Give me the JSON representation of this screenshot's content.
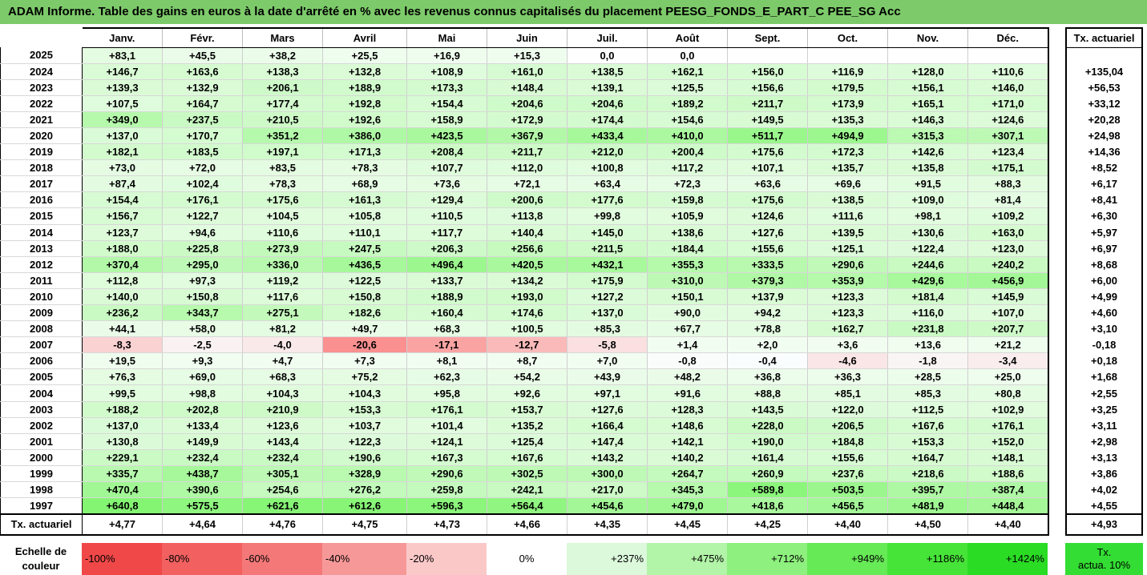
{
  "title": "ADAM Informe. Table des gains en euros à la date d'arrêté en % avec les revenus connus capitalisés du placement PEESG_FONDS_E_PART_C PEE_SG Acc",
  "months": [
    "Janv.",
    "Févr.",
    "Mars",
    "Avril",
    "Mai",
    "Juin",
    "Juil.",
    "Août",
    "Sept.",
    "Oct.",
    "Nov.",
    "Déc."
  ],
  "side_header": "Tx. actuariel",
  "rows": [
    {
      "year": "2025",
      "values": [
        "+83,1",
        "+45,5",
        "+38,2",
        "+25,5",
        "+16,9",
        "+15,3",
        "0,0",
        "0,0",
        "",
        "",
        "",
        ""
      ],
      "tx": ""
    },
    {
      "year": "2024",
      "values": [
        "+146,7",
        "+163,6",
        "+138,3",
        "+132,8",
        "+108,9",
        "+161,0",
        "+138,5",
        "+162,1",
        "+156,0",
        "+116,9",
        "+128,0",
        "+110,6"
      ],
      "tx": "+135,04"
    },
    {
      "year": "2023",
      "values": [
        "+139,3",
        "+132,9",
        "+206,1",
        "+188,9",
        "+173,3",
        "+148,4",
        "+139,1",
        "+125,5",
        "+156,6",
        "+179,5",
        "+156,1",
        "+146,0"
      ],
      "tx": "+56,53"
    },
    {
      "year": "2022",
      "values": [
        "+107,5",
        "+164,7",
        "+177,4",
        "+192,8",
        "+154,4",
        "+204,6",
        "+204,6",
        "+189,2",
        "+211,7",
        "+173,9",
        "+165,1",
        "+171,0"
      ],
      "tx": "+33,12"
    },
    {
      "year": "2021",
      "values": [
        "+349,0",
        "+237,5",
        "+210,5",
        "+192,6",
        "+158,9",
        "+172,9",
        "+174,4",
        "+154,6",
        "+149,5",
        "+135,3",
        "+146,3",
        "+124,6"
      ],
      "tx": "+20,28"
    },
    {
      "year": "2020",
      "values": [
        "+137,0",
        "+170,7",
        "+351,2",
        "+386,0",
        "+423,5",
        "+367,9",
        "+433,4",
        "+410,0",
        "+511,7",
        "+494,9",
        "+315,3",
        "+307,1"
      ],
      "tx": "+24,98"
    },
    {
      "year": "2019",
      "values": [
        "+182,1",
        "+183,5",
        "+197,1",
        "+171,3",
        "+208,4",
        "+211,7",
        "+212,0",
        "+200,4",
        "+175,6",
        "+172,3",
        "+142,6",
        "+123,4"
      ],
      "tx": "+14,36"
    },
    {
      "year": "2018",
      "values": [
        "+73,0",
        "+72,0",
        "+83,5",
        "+78,3",
        "+107,7",
        "+112,0",
        "+100,8",
        "+117,2",
        "+107,1",
        "+135,7",
        "+135,8",
        "+175,1"
      ],
      "tx": "+8,52"
    },
    {
      "year": "2017",
      "values": [
        "+87,4",
        "+102,4",
        "+78,3",
        "+68,9",
        "+73,6",
        "+72,1",
        "+63,4",
        "+72,3",
        "+63,6",
        "+69,6",
        "+91,5",
        "+88,3"
      ],
      "tx": "+6,17"
    },
    {
      "year": "2016",
      "values": [
        "+154,4",
        "+176,1",
        "+175,6",
        "+161,3",
        "+129,4",
        "+200,6",
        "+177,6",
        "+159,8",
        "+175,6",
        "+138,5",
        "+109,0",
        "+81,4"
      ],
      "tx": "+8,41"
    },
    {
      "year": "2015",
      "values": [
        "+156,7",
        "+122,7",
        "+104,5",
        "+105,8",
        "+110,5",
        "+113,8",
        "+99,8",
        "+105,9",
        "+124,6",
        "+111,6",
        "+98,1",
        "+109,2"
      ],
      "tx": "+6,30"
    },
    {
      "year": "2014",
      "values": [
        "+123,7",
        "+94,6",
        "+110,6",
        "+110,1",
        "+117,7",
        "+140,4",
        "+145,0",
        "+138,6",
        "+127,6",
        "+139,5",
        "+130,6",
        "+163,0"
      ],
      "tx": "+5,97"
    },
    {
      "year": "2013",
      "values": [
        "+188,0",
        "+225,8",
        "+273,9",
        "+247,5",
        "+206,3",
        "+256,6",
        "+211,5",
        "+184,4",
        "+155,6",
        "+125,1",
        "+122,4",
        "+123,0"
      ],
      "tx": "+6,97"
    },
    {
      "year": "2012",
      "values": [
        "+370,4",
        "+295,0",
        "+336,0",
        "+436,5",
        "+496,4",
        "+420,5",
        "+432,1",
        "+355,3",
        "+333,5",
        "+290,6",
        "+244,6",
        "+240,2"
      ],
      "tx": "+8,68"
    },
    {
      "year": "2011",
      "values": [
        "+112,8",
        "+97,3",
        "+119,2",
        "+122,5",
        "+133,7",
        "+134,2",
        "+175,9",
        "+310,0",
        "+379,3",
        "+353,9",
        "+429,6",
        "+456,9"
      ],
      "tx": "+6,00"
    },
    {
      "year": "2010",
      "values": [
        "+140,0",
        "+150,8",
        "+117,6",
        "+150,8",
        "+188,9",
        "+193,0",
        "+127,2",
        "+150,1",
        "+137,9",
        "+123,3",
        "+181,4",
        "+145,9"
      ],
      "tx": "+4,99"
    },
    {
      "year": "2009",
      "values": [
        "+236,2",
        "+343,7",
        "+275,1",
        "+182,6",
        "+160,4",
        "+174,6",
        "+137,0",
        "+90,0",
        "+94,2",
        "+123,3",
        "+116,0",
        "+107,0"
      ],
      "tx": "+4,60"
    },
    {
      "year": "2008",
      "values": [
        "+44,1",
        "+58,0",
        "+81,2",
        "+49,7",
        "+68,3",
        "+100,5",
        "+85,3",
        "+67,7",
        "+78,8",
        "+162,7",
        "+231,8",
        "+207,7"
      ],
      "tx": "+3,10"
    },
    {
      "year": "2007",
      "values": [
        "-8,3",
        "-2,5",
        "-4,0",
        "-20,6",
        "-17,1",
        "-12,7",
        "-5,8",
        "+1,4",
        "+2,0",
        "+3,6",
        "+13,6",
        "+21,2"
      ],
      "tx": "-0,18"
    },
    {
      "year": "2006",
      "values": [
        "+19,5",
        "+9,3",
        "+4,7",
        "+7,3",
        "+8,1",
        "+8,7",
        "+7,0",
        "-0,8",
        "-0,4",
        "-4,6",
        "-1,8",
        "-3,4"
      ],
      "tx": "+0,18"
    },
    {
      "year": "2005",
      "values": [
        "+76,3",
        "+69,0",
        "+68,3",
        "+75,2",
        "+62,3",
        "+54,2",
        "+43,9",
        "+48,2",
        "+36,8",
        "+36,3",
        "+28,5",
        "+25,0"
      ],
      "tx": "+1,68"
    },
    {
      "year": "2004",
      "values": [
        "+99,5",
        "+98,8",
        "+104,3",
        "+104,3",
        "+95,8",
        "+92,6",
        "+97,1",
        "+91,6",
        "+88,8",
        "+85,1",
        "+85,3",
        "+80,8"
      ],
      "tx": "+2,55"
    },
    {
      "year": "2003",
      "values": [
        "+188,2",
        "+202,8",
        "+210,9",
        "+153,3",
        "+176,1",
        "+153,7",
        "+127,6",
        "+128,3",
        "+143,5",
        "+122,0",
        "+112,5",
        "+102,9"
      ],
      "tx": "+3,25"
    },
    {
      "year": "2002",
      "values": [
        "+137,0",
        "+133,4",
        "+123,6",
        "+103,7",
        "+101,4",
        "+135,2",
        "+166,4",
        "+148,6",
        "+228,0",
        "+206,5",
        "+167,6",
        "+176,1"
      ],
      "tx": "+3,11"
    },
    {
      "year": "2001",
      "values": [
        "+130,8",
        "+149,9",
        "+143,4",
        "+122,3",
        "+124,1",
        "+125,4",
        "+147,4",
        "+142,1",
        "+190,0",
        "+184,8",
        "+153,3",
        "+152,0"
      ],
      "tx": "+2,98"
    },
    {
      "year": "2000",
      "values": [
        "+229,1",
        "+232,4",
        "+232,4",
        "+190,6",
        "+167,3",
        "+167,6",
        "+143,2",
        "+140,2",
        "+161,4",
        "+155,6",
        "+164,7",
        "+148,1"
      ],
      "tx": "+3,13"
    },
    {
      "year": "1999",
      "values": [
        "+335,7",
        "+438,7",
        "+305,1",
        "+328,9",
        "+290,6",
        "+302,5",
        "+300,0",
        "+264,7",
        "+260,9",
        "+237,6",
        "+218,6",
        "+188,6"
      ],
      "tx": "+3,86"
    },
    {
      "year": "1998",
      "values": [
        "+470,4",
        "+390,6",
        "+254,6",
        "+276,2",
        "+259,8",
        "+242,1",
        "+217,0",
        "+345,3",
        "+589,8",
        "+503,5",
        "+395,7",
        "+387,4"
      ],
      "tx": "+4,02"
    },
    {
      "year": "1997",
      "values": [
        "+640,8",
        "+575,5",
        "+621,6",
        "+612,6",
        "+596,3",
        "+564,4",
        "+454,6",
        "+479,0",
        "+418,6",
        "+456,5",
        "+481,9",
        "+448,4"
      ],
      "tx": "+4,55"
    }
  ],
  "footer": {
    "label": "Tx. actuariel",
    "values": [
      "+4,77",
      "+4,64",
      "+4,76",
      "+4,75",
      "+4,73",
      "+4,66",
      "+4,35",
      "+4,45",
      "+4,25",
      "+4,40",
      "+4,50",
      "+4,40"
    ],
    "tx": "+4,93"
  },
  "legend": {
    "label_line1": "Echelle de",
    "label_line2": "couleur",
    "cells": [
      {
        "text": "-100%",
        "color": "#f04848",
        "kind": "neg"
      },
      {
        "text": "-80%",
        "color": "#f26060",
        "kind": "neg"
      },
      {
        "text": "-60%",
        "color": "#f47878",
        "kind": "neg"
      },
      {
        "text": "-40%",
        "color": "#f79898",
        "kind": "neg"
      },
      {
        "text": "-20%",
        "color": "#fbc8c8",
        "kind": "neg"
      },
      {
        "text": "0%",
        "color": "#ffffff",
        "kind": "zero"
      },
      {
        "text": "+237%",
        "color": "#dcf9dc",
        "kind": "pos"
      },
      {
        "text": "+475%",
        "color": "#b2f4a8",
        "kind": "pos"
      },
      {
        "text": "+712%",
        "color": "#8ef07e",
        "kind": "pos"
      },
      {
        "text": "+949%",
        "color": "#66ea56",
        "kind": "pos"
      },
      {
        "text": "+1186%",
        "color": "#46e438",
        "kind": "pos"
      },
      {
        "text": "+1424%",
        "color": "#2adc24",
        "kind": "pos"
      }
    ],
    "tx_line1": "Tx.",
    "tx_line2": "actua. 10%",
    "tx_color": "#33dd33"
  }
}
